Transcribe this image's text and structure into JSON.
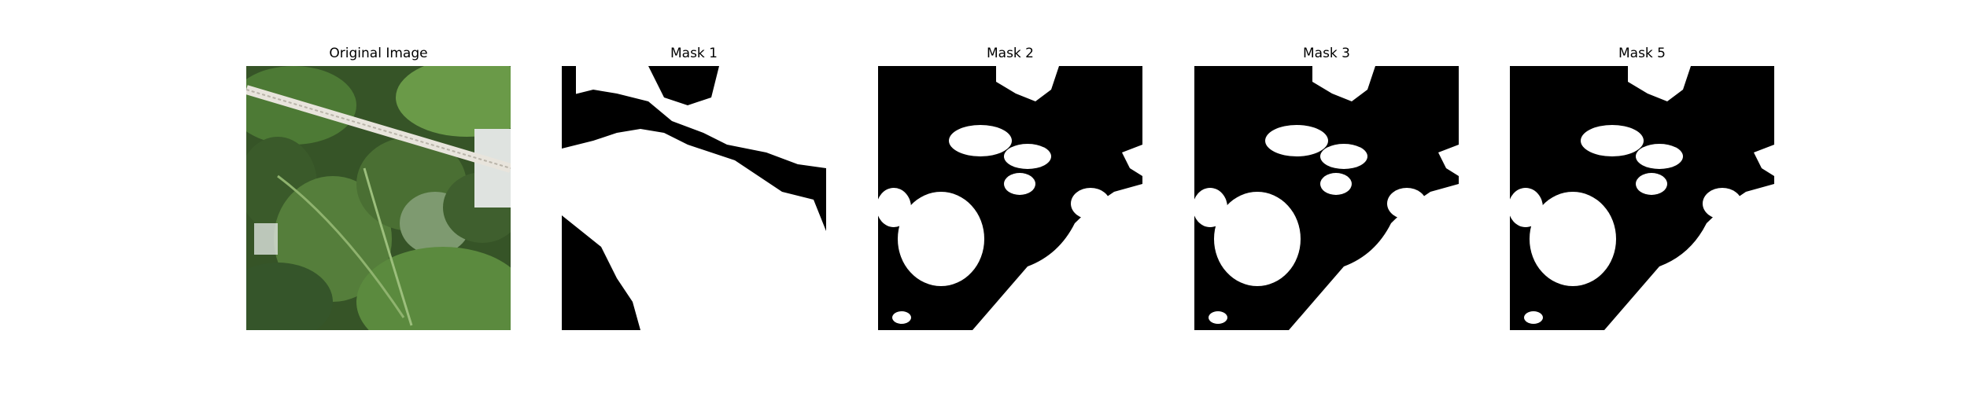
{
  "figure": {
    "background": "#ffffff",
    "panels": [
      {
        "id": "original",
        "title": "Original Image",
        "kind": "photo"
      },
      {
        "id": "mask1",
        "title": "Mask 1",
        "kind": "mask"
      },
      {
        "id": "mask2",
        "title": "Mask 2",
        "kind": "mask"
      },
      {
        "id": "mask3",
        "title": "Mask 3",
        "kind": "mask"
      },
      {
        "id": "mask5",
        "title": "Mask 5",
        "kind": "mask"
      }
    ],
    "mask_colors": {
      "foreground": "#ffffff",
      "background": "#000000"
    },
    "photo_colors": {
      "leaf_dark": "#2f4a23",
      "leaf_mid": "#4d7a35",
      "leaf_light": "#7aa35a",
      "tube": "#e8e4dc",
      "bg": "#dfe3e0"
    }
  }
}
